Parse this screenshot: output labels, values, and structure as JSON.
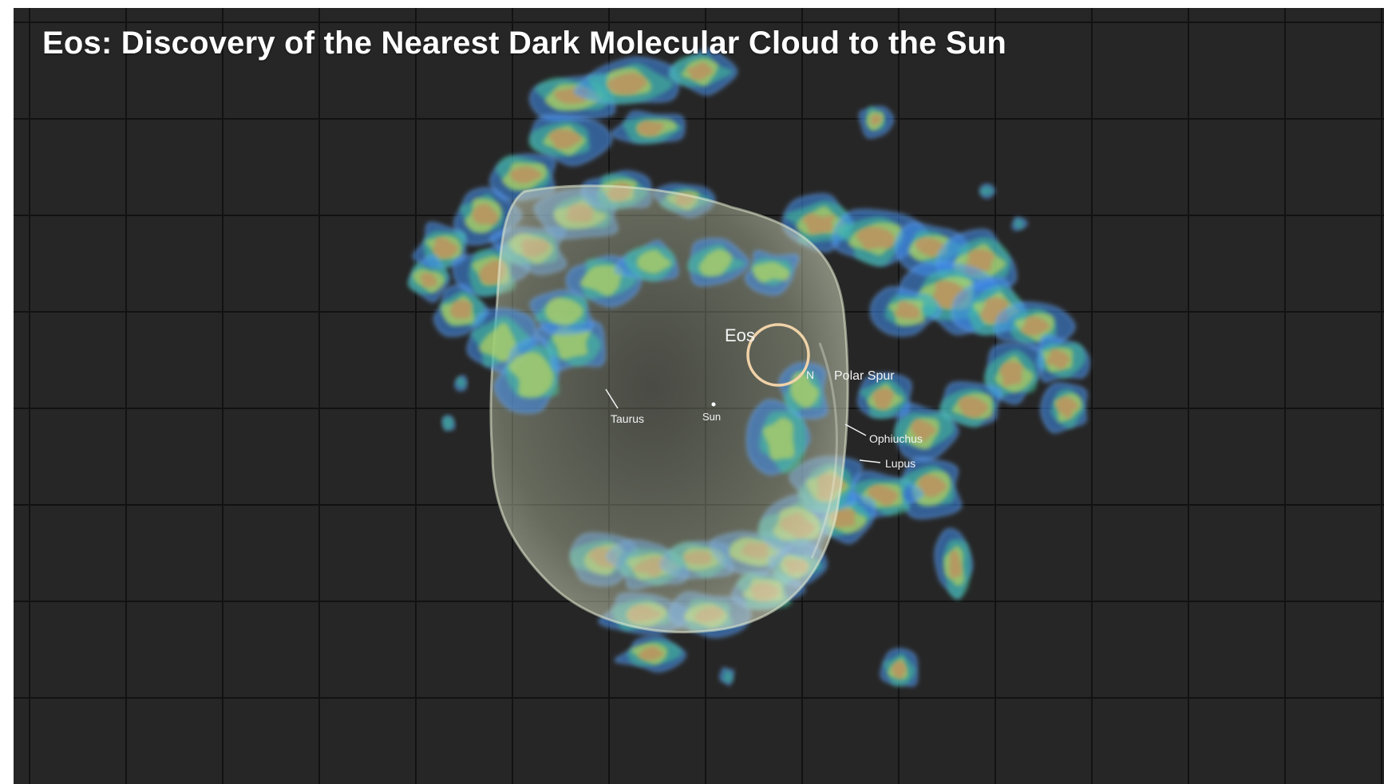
{
  "title": "Eos: Discovery of the Nearest Dark Molecular Cloud to the Sun",
  "labels": {
    "eos": "Eos",
    "north_polar_spur_prefix": "N",
    "polar_spur": "Polar Spur",
    "taurus": "Taurus",
    "sun": "Sun",
    "ophiuchus": "Ophiuchus",
    "lupus": "Lupus"
  },
  "colors": {
    "background": "#262626",
    "grid": "#121212",
    "dust_outer": "#3f8ef0",
    "dust_mid": "#43c59a",
    "dust_inner": "#d9e04a",
    "dust_core": "#c8845a",
    "bubble": "#cdd9b6",
    "eos_circle": "#e8c79a"
  }
}
